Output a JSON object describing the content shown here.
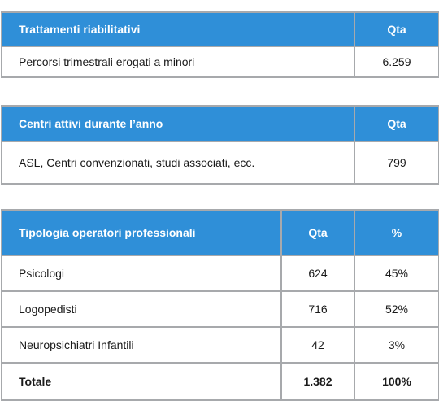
{
  "table1": {
    "headers": [
      "Trattamenti riabilitativi",
      "Qta"
    ],
    "rows": [
      [
        "Percorsi trimestrali erogati a minori",
        "6.259"
      ]
    ]
  },
  "table2": {
    "headers": [
      "Centri attivi durante l’anno",
      "Qta"
    ],
    "rows": [
      [
        "ASL, Centri convenzionati, studi associati, ecc.",
        "799"
      ]
    ]
  },
  "table3": {
    "headers": [
      "Tipologia operatori professionali",
      "Qta",
      "%"
    ],
    "rows": [
      [
        "Psicologi",
        "624",
        "45%"
      ],
      [
        "Logopedisti",
        "716",
        "52%"
      ],
      [
        "Neuropsichiatri Infantili",
        "42",
        "3%"
      ]
    ],
    "total": [
      "Totale",
      "1.382",
      "100%"
    ]
  },
  "colors": {
    "header_bg": "#2f8fd8",
    "border": "#a7a9ac"
  }
}
